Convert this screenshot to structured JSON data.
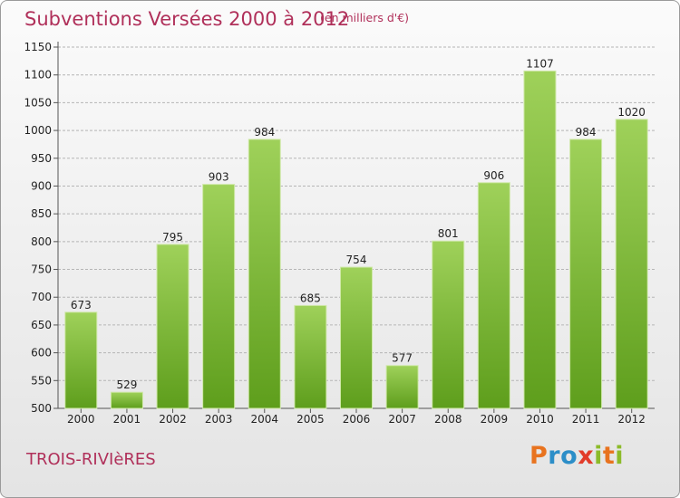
{
  "header": {
    "title": "Subventions Versées 2000 à 2012",
    "unit_note": "(en milliers d'€)"
  },
  "footer": {
    "commune": "TROIS-RIVIèRES",
    "logo_text": "Proxiti"
  },
  "colors": {
    "bar_top": "#9fd15a",
    "bar_bottom": "#5e9e1c",
    "title": "#b0305a",
    "grid": "#b5b5b5"
  },
  "chart_data": {
    "type": "bar",
    "categories": [
      "2000",
      "2001",
      "2002",
      "2003",
      "2004",
      "2005",
      "2006",
      "2007",
      "2008",
      "2009",
      "2010",
      "2011",
      "2012"
    ],
    "values": [
      673,
      529,
      795,
      903,
      984,
      685,
      754,
      577,
      801,
      906,
      1107,
      984,
      1020
    ],
    "ylim": [
      500,
      1150
    ],
    "yticks": [
      500,
      550,
      600,
      650,
      700,
      750,
      800,
      850,
      900,
      950,
      1000,
      1050,
      1100,
      1150
    ],
    "grid": true,
    "data_labels": true
  }
}
